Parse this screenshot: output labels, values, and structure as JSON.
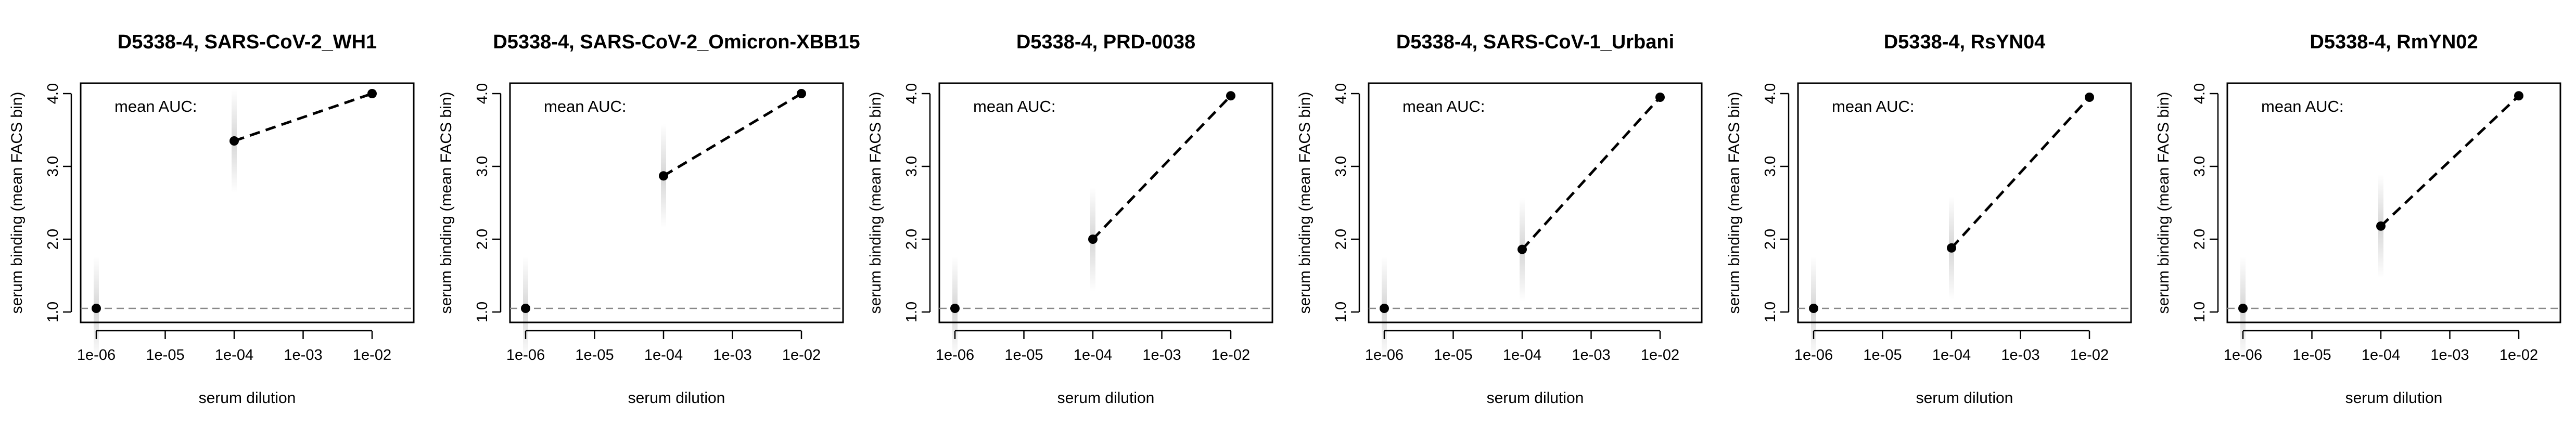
{
  "figure": {
    "panel_count": 6
  },
  "chart_data": [
    {
      "type": "line",
      "title": "D5338-4, SARS-CoV-2_WH1",
      "xlabel": "serum dilution",
      "ylabel": "serum binding (mean FACS bin)",
      "annotation": "mean AUC:",
      "x_scale": "log",
      "xlim": [
        1e-06,
        0.01
      ],
      "ylim": [
        1.0,
        4.0
      ],
      "x_ticks": [
        "1e-06",
        "1e-05",
        "1e-04",
        "1e-03",
        "1e-02"
      ],
      "y_ticks": [
        "1.0",
        "2.0",
        "3.0",
        "4.0"
      ],
      "baseline": 1.05,
      "points": [
        {
          "x": 1e-06,
          "y": 1.05
        },
        {
          "x": 0.0001,
          "y": 3.35
        },
        {
          "x": 0.01,
          "y": 4.0
        }
      ],
      "line_from": [
        0.0001,
        0.01
      ]
    },
    {
      "type": "line",
      "title": "D5338-4, SARS-CoV-2_Omicron-XBB15",
      "xlabel": "serum dilution",
      "ylabel": "serum binding (mean FACS bin)",
      "annotation": "mean AUC:",
      "x_scale": "log",
      "xlim": [
        1e-06,
        0.01
      ],
      "ylim": [
        1.0,
        4.0
      ],
      "x_ticks": [
        "1e-06",
        "1e-05",
        "1e-04",
        "1e-03",
        "1e-02"
      ],
      "y_ticks": [
        "1.0",
        "2.0",
        "3.0",
        "4.0"
      ],
      "baseline": 1.05,
      "points": [
        {
          "x": 1e-06,
          "y": 1.05
        },
        {
          "x": 0.0001,
          "y": 2.87
        },
        {
          "x": 0.01,
          "y": 4.0
        }
      ],
      "line_from": [
        0.0001,
        0.01
      ]
    },
    {
      "type": "line",
      "title": "D5338-4, PRD-0038",
      "xlabel": "serum dilution",
      "ylabel": "serum binding (mean FACS bin)",
      "annotation": "mean AUC:",
      "x_scale": "log",
      "xlim": [
        1e-06,
        0.01
      ],
      "ylim": [
        1.0,
        4.0
      ],
      "x_ticks": [
        "1e-06",
        "1e-05",
        "1e-04",
        "1e-03",
        "1e-02"
      ],
      "y_ticks": [
        "1.0",
        "2.0",
        "3.0",
        "4.0"
      ],
      "baseline": 1.05,
      "points": [
        {
          "x": 1e-06,
          "y": 1.05
        },
        {
          "x": 0.0001,
          "y": 2.0
        },
        {
          "x": 0.01,
          "y": 3.97
        }
      ],
      "line_from": [
        0.0001,
        0.01
      ]
    },
    {
      "type": "line",
      "title": "D5338-4, SARS-CoV-1_Urbani",
      "xlabel": "serum dilution",
      "ylabel": "serum binding (mean FACS bin)",
      "annotation": "mean AUC:",
      "x_scale": "log",
      "xlim": [
        1e-06,
        0.01
      ],
      "ylim": [
        1.0,
        4.0
      ],
      "x_ticks": [
        "1e-06",
        "1e-05",
        "1e-04",
        "1e-03",
        "1e-02"
      ],
      "y_ticks": [
        "1.0",
        "2.0",
        "3.0",
        "4.0"
      ],
      "baseline": 1.05,
      "points": [
        {
          "x": 1e-06,
          "y": 1.05
        },
        {
          "x": 0.0001,
          "y": 1.86
        },
        {
          "x": 0.01,
          "y": 3.95
        }
      ],
      "line_from": [
        0.0001,
        0.01
      ]
    },
    {
      "type": "line",
      "title": "D5338-4, RsYN04",
      "xlabel": "serum dilution",
      "ylabel": "serum binding (mean FACS bin)",
      "annotation": "mean AUC:",
      "x_scale": "log",
      "xlim": [
        1e-06,
        0.01
      ],
      "ylim": [
        1.0,
        4.0
      ],
      "x_ticks": [
        "1e-06",
        "1e-05",
        "1e-04",
        "1e-03",
        "1e-02"
      ],
      "y_ticks": [
        "1.0",
        "2.0",
        "3.0",
        "4.0"
      ],
      "baseline": 1.05,
      "points": [
        {
          "x": 1e-06,
          "y": 1.05
        },
        {
          "x": 0.0001,
          "y": 1.88
        },
        {
          "x": 0.01,
          "y": 3.95
        }
      ],
      "line_from": [
        0.0001,
        0.01
      ]
    },
    {
      "type": "line",
      "title": "D5338-4, RmYN02",
      "xlabel": "serum dilution",
      "ylabel": "serum binding (mean FACS bin)",
      "annotation": "mean AUC:",
      "x_scale": "log",
      "xlim": [
        1e-06,
        0.01
      ],
      "ylim": [
        1.0,
        4.0
      ],
      "x_ticks": [
        "1e-06",
        "1e-05",
        "1e-04",
        "1e-03",
        "1e-02"
      ],
      "y_ticks": [
        "1.0",
        "2.0",
        "3.0",
        "4.0"
      ],
      "baseline": 1.05,
      "points": [
        {
          "x": 1e-06,
          "y": 1.05
        },
        {
          "x": 0.0001,
          "y": 2.18
        },
        {
          "x": 0.01,
          "y": 3.97
        }
      ],
      "line_from": [
        0.0001,
        0.01
      ]
    }
  ]
}
